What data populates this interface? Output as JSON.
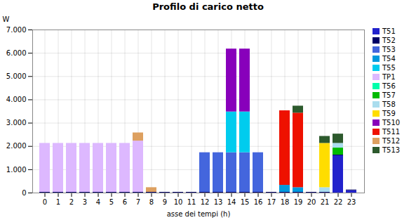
{
  "chart_data": {
    "type": "bar",
    "title": "Profilo di carico netto",
    "xlabel": "asse dei tempi (h)",
    "ylabel": "W",
    "categories": [
      "0",
      "1",
      "2",
      "3",
      "4",
      "5",
      "6",
      "7",
      "8",
      "9",
      "10",
      "11",
      "12",
      "13",
      "14",
      "15",
      "16",
      "17",
      "18",
      "19",
      "20",
      "21",
      "22",
      "23"
    ],
    "series": [
      {
        "name": "T51",
        "color": "#2222cc",
        "values": [
          0,
          0,
          0,
          0,
          0,
          0,
          0,
          0,
          0,
          0,
          0,
          0,
          0,
          0,
          0,
          0,
          0,
          0,
          0,
          0,
          0,
          0,
          1600,
          100
        ]
      },
      {
        "name": "T52",
        "color": "#000066",
        "values": [
          30,
          30,
          30,
          30,
          30,
          30,
          30,
          30,
          30,
          30,
          30,
          30,
          30,
          30,
          30,
          30,
          30,
          30,
          30,
          30,
          30,
          30,
          30,
          30
        ]
      },
      {
        "name": "T53",
        "color": "#4466dd",
        "values": [
          0,
          0,
          0,
          0,
          0,
          0,
          0,
          0,
          0,
          0,
          0,
          0,
          1700,
          1700,
          1700,
          1700,
          1700,
          0,
          0,
          0,
          0,
          0,
          0,
          0
        ]
      },
      {
        "name": "T54",
        "color": "#0099dd",
        "values": [
          0,
          0,
          0,
          0,
          0,
          0,
          0,
          0,
          0,
          0,
          0,
          0,
          0,
          0,
          0,
          0,
          0,
          0,
          300,
          200,
          0,
          0,
          0,
          0
        ]
      },
      {
        "name": "T55",
        "color": "#00ccee",
        "values": [
          0,
          0,
          0,
          0,
          0,
          0,
          0,
          0,
          0,
          0,
          0,
          0,
          0,
          0,
          1750,
          1750,
          0,
          0,
          0,
          0,
          0,
          0,
          0,
          0
        ]
      },
      {
        "name": "TP1",
        "color": "#ddb8ff",
        "values": [
          2100,
          2100,
          2100,
          2100,
          2100,
          2100,
          2100,
          2200,
          0,
          0,
          0,
          0,
          0,
          0,
          0,
          0,
          0,
          0,
          0,
          0,
          0,
          0,
          0,
          0
        ]
      },
      {
        "name": "T56",
        "color": "#00ffaa",
        "values": [
          0,
          0,
          0,
          0,
          0,
          0,
          0,
          0,
          0,
          0,
          0,
          0,
          0,
          0,
          0,
          0,
          0,
          0,
          0,
          0,
          0,
          0,
          0,
          0
        ]
      },
      {
        "name": "T57",
        "color": "#00bb00",
        "values": [
          0,
          0,
          0,
          0,
          0,
          0,
          0,
          0,
          0,
          0,
          0,
          0,
          0,
          0,
          0,
          0,
          0,
          0,
          0,
          0,
          0,
          0,
          300,
          0
        ]
      },
      {
        "name": "T58",
        "color": "#aaddee",
        "values": [
          0,
          0,
          0,
          0,
          0,
          0,
          0,
          0,
          0,
          0,
          0,
          0,
          0,
          0,
          0,
          0,
          0,
          0,
          0,
          0,
          0,
          200,
          200,
          0
        ]
      },
      {
        "name": "T59",
        "color": "#ffdd00",
        "values": [
          0,
          0,
          0,
          0,
          0,
          0,
          0,
          0,
          0,
          0,
          0,
          0,
          0,
          0,
          0,
          0,
          0,
          0,
          0,
          0,
          0,
          1900,
          0,
          0
        ]
      },
      {
        "name": "T510",
        "color": "#8800bb",
        "values": [
          0,
          0,
          0,
          0,
          0,
          0,
          0,
          0,
          0,
          0,
          0,
          0,
          0,
          0,
          2700,
          2700,
          0,
          0,
          0,
          0,
          0,
          0,
          0,
          0
        ]
      },
      {
        "name": "T511",
        "color": "#ee1100",
        "values": [
          0,
          0,
          0,
          0,
          0,
          0,
          0,
          0,
          0,
          0,
          0,
          0,
          0,
          0,
          0,
          0,
          0,
          0,
          3200,
          3200,
          0,
          0,
          0,
          0
        ]
      },
      {
        "name": "T512",
        "color": "#dda060",
        "values": [
          0,
          0,
          0,
          0,
          0,
          0,
          0,
          350,
          200,
          0,
          0,
          0,
          0,
          0,
          0,
          0,
          0,
          0,
          0,
          0,
          0,
          0,
          0,
          0
        ]
      },
      {
        "name": "T513",
        "color": "#2d5a2d",
        "values": [
          0,
          0,
          0,
          0,
          0,
          0,
          0,
          0,
          0,
          0,
          0,
          0,
          0,
          0,
          0,
          0,
          0,
          0,
          0,
          300,
          0,
          300,
          400,
          0
        ]
      }
    ],
    "stacked": true,
    "ylim": [
      0,
      7000
    ],
    "yticks": [
      0,
      {
        "value": 1000,
        "label": "1.000"
      },
      {
        "value": 2000,
        "label": "2.000"
      },
      {
        "value": 3000,
        "label": "3.000"
      },
      {
        "value": 4000,
        "label": "4.000"
      },
      {
        "value": 5000,
        "label": "5.000"
      },
      {
        "value": 6000,
        "label": "6.000"
      },
      {
        "value": 7000,
        "label": "7.000"
      }
    ],
    "grid": true,
    "legend": "upper right"
  }
}
